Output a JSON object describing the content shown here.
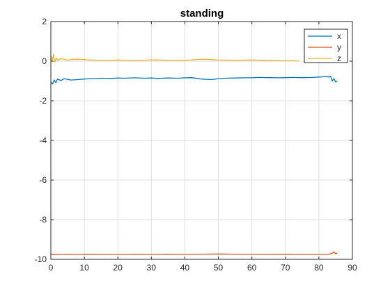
{
  "chart_data": {
    "type": "line",
    "title": "standing",
    "xlabel": "",
    "ylabel": "",
    "xlim": [
      0,
      90
    ],
    "ylim": [
      -10,
      2
    ],
    "xticks": [
      0,
      10,
      20,
      30,
      40,
      50,
      60,
      70,
      80,
      90
    ],
    "yticks": [
      2,
      0,
      -2,
      -4,
      -6,
      -8,
      -10
    ],
    "grid": true,
    "legend_position": "top-right",
    "series": [
      {
        "name": "x",
        "color": "#0072BD",
        "x": [
          0,
          0.5,
          1,
          1.5,
          2,
          3,
          4,
          5,
          6,
          8,
          10,
          12,
          15,
          18,
          20,
          22,
          25,
          28,
          30,
          32,
          35,
          38,
          40,
          42,
          45,
          48,
          50,
          52,
          55,
          58,
          60,
          62,
          65,
          68,
          70,
          72,
          75,
          78,
          80,
          82,
          83,
          83.5,
          84,
          84.5,
          85,
          85.5
        ],
        "y": [
          -1.05,
          -1.15,
          -0.95,
          -1.08,
          -0.9,
          -0.98,
          -0.88,
          -0.92,
          -0.95,
          -0.93,
          -0.9,
          -0.88,
          -0.86,
          -0.87,
          -0.85,
          -0.86,
          -0.84,
          -0.86,
          -0.85,
          -0.87,
          -0.85,
          -0.86,
          -0.84,
          -0.83,
          -0.9,
          -0.93,
          -0.88,
          -0.86,
          -0.85,
          -0.84,
          -0.84,
          -0.82,
          -0.83,
          -0.84,
          -0.83,
          -0.82,
          -0.83,
          -0.82,
          -0.8,
          -0.78,
          -0.8,
          -0.75,
          -1.0,
          -0.88,
          -1.05,
          -1.0
        ]
      },
      {
        "name": "y",
        "color": "#D95319",
        "x": [
          0,
          1,
          2,
          3,
          5,
          8,
          10,
          15,
          20,
          25,
          30,
          35,
          40,
          45,
          50,
          55,
          60,
          65,
          70,
          75,
          80,
          83,
          84,
          84.5,
          85,
          85.5
        ],
        "y": [
          -9.73,
          -9.76,
          -9.74,
          -9.75,
          -9.74,
          -9.75,
          -9.74,
          -9.75,
          -9.75,
          -9.74,
          -9.75,
          -9.74,
          -9.75,
          -9.74,
          -9.73,
          -9.74,
          -9.74,
          -9.75,
          -9.74,
          -9.75,
          -9.75,
          -9.74,
          -9.7,
          -9.62,
          -9.72,
          -9.68
        ]
      },
      {
        "name": "z",
        "color": "#EDB120",
        "x": [
          0,
          0.4,
          0.8,
          1.2,
          1.6,
          2,
          3,
          4,
          5,
          6,
          8,
          10,
          12,
          15,
          18,
          20,
          22,
          25,
          28,
          30,
          32,
          35,
          38,
          40,
          42,
          45,
          48,
          50,
          55,
          60,
          65,
          70,
          72,
          74
        ],
        "y": [
          0.28,
          0.0,
          0.35,
          -0.05,
          0.15,
          0.05,
          0.12,
          0.1,
          0.05,
          0.08,
          0.1,
          0.08,
          0.06,
          0.05,
          0.05,
          0.06,
          0.05,
          0.04,
          0.05,
          0.07,
          0.06,
          0.05,
          0.04,
          0.05,
          0.06,
          0.1,
          0.08,
          0.06,
          0.05,
          0.06,
          0.04,
          0.03,
          0.02,
          0.0
        ]
      }
    ]
  }
}
